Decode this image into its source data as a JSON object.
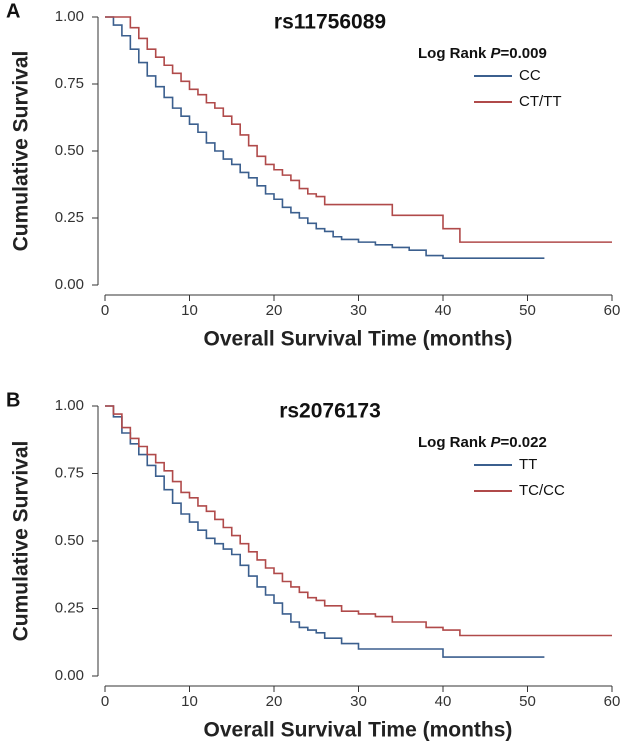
{
  "chart_data": [
    {
      "type": "step",
      "panel": "A",
      "title": "rs11756089",
      "annotation": [
        "Log Rank ",
        "P",
        "=0.009"
      ],
      "x_label": "Overall Survival Time (months)",
      "y_label": "Cumulative Survival",
      "xlim": [
        0,
        60
      ],
      "ylim": [
        0,
        1
      ],
      "xticks": [
        0,
        10,
        20,
        30,
        40,
        50,
        60
      ],
      "yticks": [
        {
          "value": 0,
          "label": "0.00"
        },
        0.25,
        {
          "value": 0.5,
          "label": "0.50"
        },
        0.75,
        {
          "value": 1,
          "label": "1.00"
        }
      ],
      "series": [
        {
          "name": "CC",
          "color": "#3b5f8e",
          "x": [
            0,
            1,
            2,
            3,
            4,
            5,
            6,
            7,
            8,
            9,
            10,
            11,
            12,
            13,
            14,
            15,
            16,
            17,
            18,
            19,
            20,
            21,
            22,
            23,
            24,
            25,
            26,
            27,
            28,
            30,
            32,
            34,
            36,
            38,
            40,
            52
          ],
          "values": [
            1,
            0.97,
            0.93,
            0.88,
            0.83,
            0.78,
            0.74,
            0.7,
            0.66,
            0.63,
            0.6,
            0.57,
            0.53,
            0.5,
            0.47,
            0.45,
            0.42,
            0.4,
            0.37,
            0.34,
            0.32,
            0.29,
            0.27,
            0.25,
            0.23,
            0.21,
            0.2,
            0.18,
            0.17,
            0.16,
            0.15,
            0.14,
            0.13,
            0.11,
            0.1,
            0.1
          ]
        },
        {
          "name": "CT/TT",
          "color": "#b04a4a",
          "x": [
            0,
            2,
            3,
            4,
            5,
            6,
            7,
            8,
            9,
            10,
            11,
            12,
            13,
            14,
            15,
            16,
            17,
            18,
            19,
            20,
            21,
            22,
            23,
            24,
            25,
            26,
            30,
            34,
            38,
            40,
            42,
            60
          ],
          "values": [
            1,
            1,
            0.96,
            0.92,
            0.88,
            0.85,
            0.82,
            0.79,
            0.76,
            0.73,
            0.71,
            0.68,
            0.66,
            0.63,
            0.6,
            0.56,
            0.52,
            0.48,
            0.45,
            0.43,
            0.41,
            0.39,
            0.36,
            0.34,
            0.33,
            0.3,
            0.3,
            0.26,
            0.26,
            0.21,
            0.16,
            0.16
          ]
        }
      ]
    },
    {
      "type": "step",
      "panel": "B",
      "title": "rs2076173",
      "annotation": [
        "Log Rank ",
        "P",
        "=0.022"
      ],
      "x_label": "Overall Survival Time (months)",
      "y_label": "Cumulative Survival",
      "xlim": [
        0,
        60
      ],
      "ylim": [
        0,
        1
      ],
      "xticks": [
        0,
        10,
        20,
        30,
        40,
        50,
        60
      ],
      "yticks": [
        {
          "value": 0,
          "label": "0.00"
        },
        0.25,
        {
          "value": 0.5,
          "label": "0.50"
        },
        0.75,
        {
          "value": 1,
          "label": "1.00"
        }
      ],
      "series": [
        {
          "name": "TT",
          "color": "#3b5f8e",
          "x": [
            0,
            1,
            2,
            3,
            4,
            5,
            6,
            7,
            8,
            9,
            10,
            11,
            12,
            13,
            14,
            15,
            16,
            17,
            18,
            19,
            20,
            21,
            22,
            23,
            24,
            25,
            26,
            28,
            30,
            34,
            40,
            52
          ],
          "values": [
            1,
            0.96,
            0.9,
            0.86,
            0.82,
            0.78,
            0.74,
            0.69,
            0.64,
            0.6,
            0.57,
            0.54,
            0.51,
            0.49,
            0.47,
            0.45,
            0.41,
            0.37,
            0.33,
            0.3,
            0.27,
            0.23,
            0.2,
            0.18,
            0.17,
            0.16,
            0.14,
            0.12,
            0.1,
            0.1,
            0.07,
            0.07
          ]
        },
        {
          "name": "TC/CC",
          "color": "#b04a4a",
          "x": [
            0,
            1,
            2,
            3,
            4,
            5,
            6,
            7,
            8,
            9,
            10,
            11,
            12,
            13,
            14,
            15,
            16,
            17,
            18,
            19,
            20,
            21,
            22,
            23,
            24,
            25,
            26,
            28,
            30,
            32,
            34,
            36,
            38,
            40,
            42,
            60
          ],
          "values": [
            1,
            0.97,
            0.92,
            0.88,
            0.85,
            0.82,
            0.79,
            0.76,
            0.72,
            0.68,
            0.66,
            0.63,
            0.61,
            0.58,
            0.55,
            0.52,
            0.49,
            0.46,
            0.43,
            0.4,
            0.38,
            0.35,
            0.33,
            0.31,
            0.29,
            0.28,
            0.26,
            0.24,
            0.23,
            0.22,
            0.2,
            0.2,
            0.18,
            0.17,
            0.15,
            0.15
          ]
        }
      ]
    }
  ]
}
